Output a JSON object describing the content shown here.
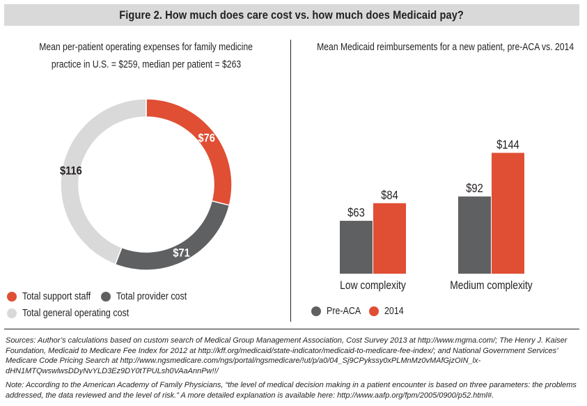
{
  "title": "Figure 2. How much does care cost vs. how much does Medicaid pay?",
  "chart_data": [
    {
      "type": "pie",
      "subtitle_line1": "Mean per-patient operating expenses for family medicine",
      "subtitle_line2": "practice in U.S. = $259, median per patient = $263",
      "slices": [
        {
          "name": "Total support staff",
          "value": 76,
          "label": "$76",
          "color": "#e04e34"
        },
        {
          "name": "Total provider cost",
          "value": 71,
          "label": "$71",
          "color": "#5f6062"
        },
        {
          "name": "Total general operating cost",
          "value": 116,
          "label": "$116",
          "color": "#d9d9d9"
        }
      ]
    },
    {
      "type": "bar",
      "subtitle": "Mean Medicaid reimbursements for a new patient, pre-ACA vs. 2014",
      "categories": [
        "Low complexity",
        "Medium complexity"
      ],
      "series": [
        {
          "name": "Pre-ACA",
          "color": "#5f6062",
          "values": [
            63,
            92
          ],
          "labels": [
            "$63",
            "$92"
          ]
        },
        {
          "name": "2014",
          "color": "#e04e34",
          "values": [
            84,
            144
          ],
          "labels": [
            "$84",
            "$144"
          ]
        }
      ],
      "ylim": [
        0,
        150
      ]
    }
  ],
  "footnotes": {
    "sources": "Sources: Author’s calculations based on custom search of Medical Group Management Association, Cost Survey 2013 at http://www.mgma.com/; The Henry J. Kaiser Foundation, Medicaid to Medicare Fee Index for 2012 at http://kff.org/medicaid/state-indicator/medicaid-to-medicare-fee-index/; and National Government Services’ Medicare Code Pricing Search at http://www.ngsmedicare.com/ngs/portal/ngsmedicare/!ut/p/a0/04_Sj9CPykssy0xPLMnMz0vMAfGjzOIN_lx-dHN1MTQwswlwsDDyNvYLD3Ez9DY0tTPULsh0VAaAnnPw!!/",
    "note": "Note: According to the American Academy of Family Physicians, “the level of medical decision making in a patient encounter is based on three parameters: the problems addressed, the data reviewed and the level of risk.” A more detailed explanation is available here: http://www.aafp.org/fpm/2005/0900/p52.html#."
  }
}
